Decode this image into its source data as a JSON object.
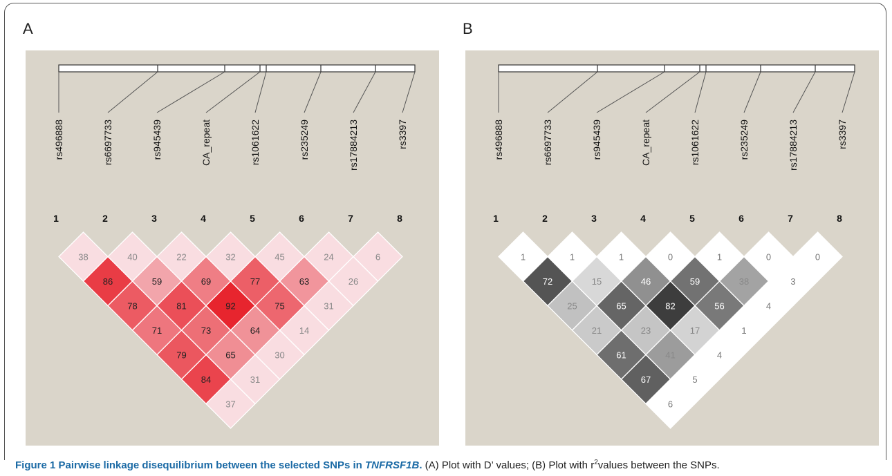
{
  "figure": {
    "panels": [
      {
        "label": "A",
        "snps": [
          "rs496888",
          "rs6697733",
          "rs945439",
          "CA_repeat",
          "rs1061622",
          "rs235249",
          "rs17884213",
          "rs3397"
        ],
        "indices": [
          "1",
          "2",
          "3",
          "4",
          "5",
          "6",
          "7",
          "8"
        ],
        "values": [
          [
            "38",
            "40",
            "22",
            "32",
            "45",
            "24",
            "6"
          ],
          [
            "86",
            "59",
            "69",
            "77",
            "63",
            "26"
          ],
          [
            "78",
            "81",
            "92",
            "75",
            "31"
          ],
          [
            "71",
            "73",
            "64",
            "14"
          ],
          [
            "79",
            "65",
            "30"
          ],
          [
            "84",
            "31"
          ],
          [
            "37"
          ]
        ],
        "scheme": "red"
      },
      {
        "label": "B",
        "snps": [
          "rs496888",
          "rs6697733",
          "rs945439",
          "CA_repeat",
          "rs1061622",
          "rs235249",
          "rs17884213",
          "rs3397"
        ],
        "indices": [
          "1",
          "2",
          "3",
          "4",
          "5",
          "6",
          "7",
          "8"
        ],
        "values": [
          [
            "1",
            "1",
            "1",
            "0",
            "1",
            "0",
            "0"
          ],
          [
            "72",
            "15",
            "46",
            "59",
            "38",
            "3"
          ],
          [
            "25",
            "65",
            "82",
            "56",
            "4"
          ],
          [
            "21",
            "23",
            "17",
            "1"
          ],
          [
            "61",
            "41",
            "4"
          ],
          [
            "67",
            "5"
          ],
          [
            "6"
          ]
        ],
        "scheme": "gray"
      }
    ],
    "caption": {
      "title": "Figure 1 Pairwise linkage disequilibrium between the selected SNPs in ",
      "gene": "TNFRSF1B",
      "title_end": ".",
      "text_a": " (A) Plot with D’ values; (B) Plot with r",
      "sup": "2",
      "text_b": "values between the SNPs."
    }
  }
}
